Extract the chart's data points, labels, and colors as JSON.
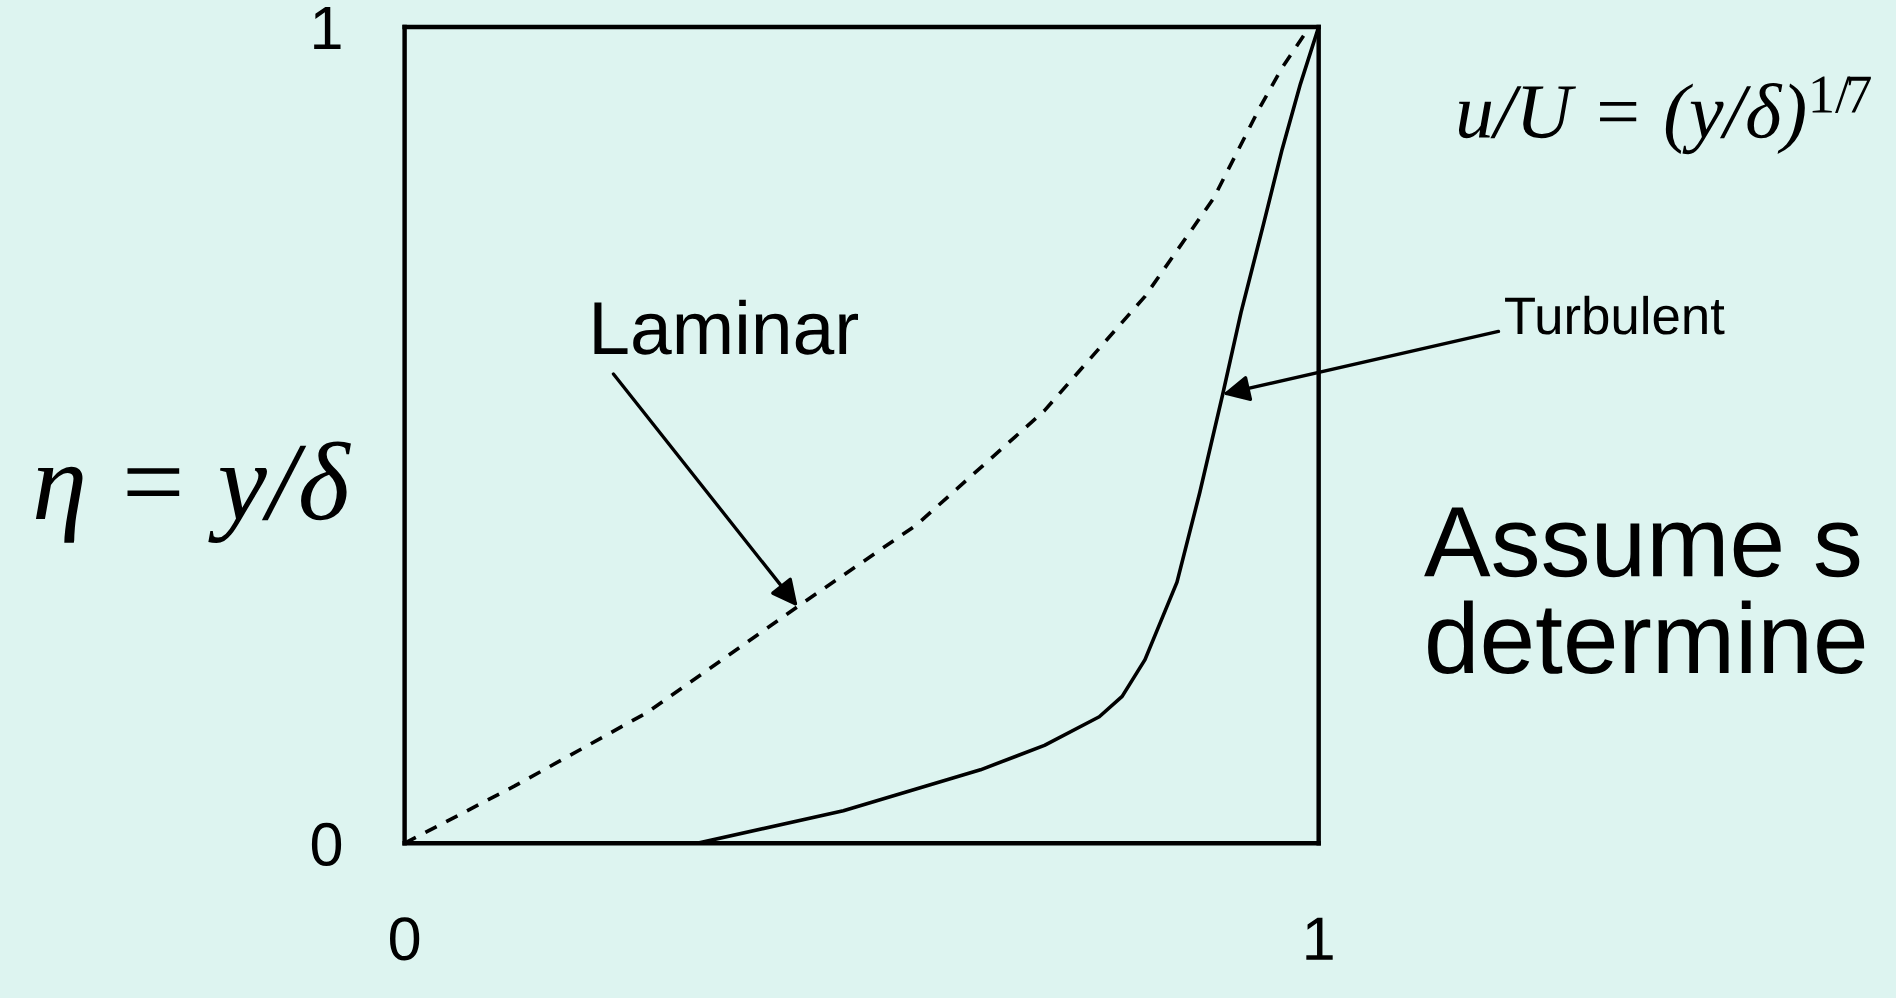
{
  "chart_data": {
    "type": "line",
    "ylabel": "η = y/δ",
    "annotations": [
      "u/U = (y/δ)$^{1/7}$",
      "Assume s\ndetermine",
      {
        "text": "Laminar",
        "x": 0.43,
        "y": 0.29
      },
      {
        "text": "Turbulent",
        "x": 0.895,
        "y": 0.55
      }
    ],
    "xlim": [
      0,
      1
    ],
    "ylim": [
      0,
      1
    ],
    "xticks": [
      0,
      1
    ],
    "yticks": [
      0,
      1
    ],
    "series": [
      {
        "color": "#000000",
        "line_style": "dashed",
        "x": [
          0,
          0.12,
          0.265,
          0.43,
          0.56,
          0.7,
          0.81,
          0.885,
          0.935,
          0.96,
          0.99
        ],
        "values": [
          0,
          0.07,
          0.16,
          0.29,
          0.39,
          0.53,
          0.67,
          0.79,
          0.9,
          0.95,
          1.0
        ]
      },
      {
        "color": "#000000",
        "line_style": "solid",
        "x": [
          0.32,
          0.48,
          0.63,
          0.7,
          0.76,
          0.785,
          0.81,
          0.845,
          0.87,
          0.895,
          0.915,
          0.94,
          0.96,
          0.98,
          1.0
        ],
        "values": [
          0,
          0.04,
          0.09,
          0.12,
          0.155,
          0.18,
          0.225,
          0.32,
          0.43,
          0.55,
          0.65,
          0.76,
          0.85,
          0.93,
          1.0
        ]
      }
    ]
  }
}
